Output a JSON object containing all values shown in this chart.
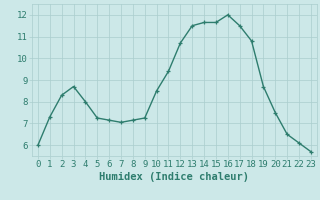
{
  "x": [
    0,
    1,
    2,
    3,
    4,
    5,
    6,
    7,
    8,
    9,
    10,
    11,
    12,
    13,
    14,
    15,
    16,
    17,
    18,
    19,
    20,
    21,
    22,
    23
  ],
  "y": [
    6.0,
    7.3,
    8.3,
    8.7,
    8.0,
    7.25,
    7.15,
    7.05,
    7.15,
    7.25,
    8.5,
    9.4,
    10.7,
    11.5,
    11.65,
    11.65,
    12.0,
    11.5,
    10.8,
    8.7,
    7.5,
    6.5,
    6.1,
    5.7
  ],
  "line_color": "#2e7d6e",
  "marker": "+",
  "bg_color": "#cce8e8",
  "grid_color": "#aacece",
  "xlabel": "Humidex (Indice chaleur)",
  "ylim": [
    5.5,
    12.5
  ],
  "xlim": [
    -0.5,
    23.5
  ],
  "yticks": [
    6,
    7,
    8,
    9,
    10,
    11,
    12
  ],
  "xticks": [
    0,
    1,
    2,
    3,
    4,
    5,
    6,
    7,
    8,
    9,
    10,
    11,
    12,
    13,
    14,
    15,
    16,
    17,
    18,
    19,
    20,
    21,
    22,
    23
  ],
  "tick_color": "#2e7d6e",
  "tick_fontsize": 6.5,
  "xlabel_fontsize": 7.5,
  "linewidth": 1.0,
  "markersize": 3.5,
  "markeredgewidth": 0.9
}
